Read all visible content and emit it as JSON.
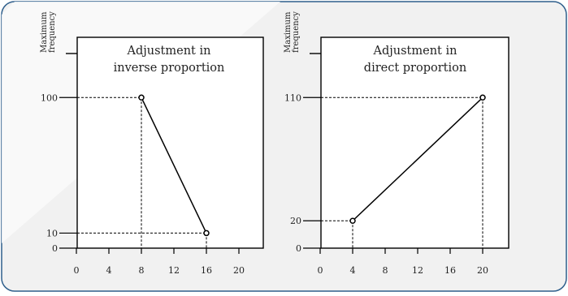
{
  "colors": {
    "card_background": "#f1f1f1",
    "card_border": "#2f5f8c",
    "card_sheen": "#fafafa",
    "plot_background": "#ffffff",
    "line": "#000000"
  },
  "chart_data": [
    {
      "type": "line",
      "title_lines": [
        "Adjustment in",
        "inverse proportion"
      ],
      "ylabel_lines": [
        "Maximum",
        "frequency"
      ],
      "xlabel": "",
      "xlim": [
        0,
        23
      ],
      "ylim": [
        0,
        140
      ],
      "xticks": [
        0,
        4,
        8,
        12,
        16,
        20
      ],
      "x_tick_labels": [
        "0",
        "4",
        "8",
        "12",
        "16",
        "20"
      ],
      "yticks": [
        0,
        10,
        100
      ],
      "y_tick_labels": [
        "0",
        "10",
        "100"
      ],
      "grid": false,
      "series": [
        {
          "points": [
            [
              8,
              100
            ],
            [
              16,
              10
            ]
          ]
        }
      ]
    },
    {
      "type": "line",
      "title_lines": [
        "Adjustment in",
        "direct proportion"
      ],
      "ylabel_lines": [
        "Maximum",
        "frequency"
      ],
      "xlabel": "",
      "xlim": [
        0,
        23
      ],
      "ylim": [
        0,
        154
      ],
      "xticks": [
        0,
        4,
        8,
        12,
        16,
        20
      ],
      "x_tick_labels": [
        "0",
        "4",
        "8",
        "12",
        "16",
        "20"
      ],
      "yticks": [
        0,
        20,
        110
      ],
      "y_tick_labels": [
        "0",
        "20",
        "110"
      ],
      "grid": false,
      "series": [
        {
          "points": [
            [
              4,
              20
            ],
            [
              20,
              110
            ]
          ]
        }
      ]
    }
  ]
}
